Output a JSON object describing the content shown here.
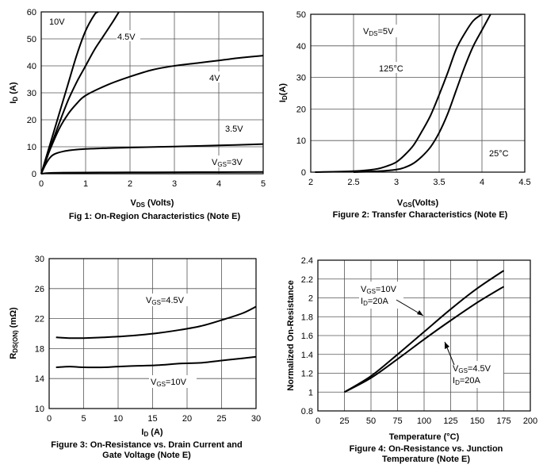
{
  "charts": [
    {
      "caption": "Fig 1: On-Region Characteristics (Note E)",
      "xlabel_main": "V",
      "xlabel_sub": "DS",
      "xlabel_tail": " (Volts)",
      "ylabel_main": "I",
      "ylabel_sub": "D",
      "ylabel_tail": " (A)",
      "annotations": [
        {
          "id": "a0",
          "text": "10V"
        },
        {
          "id": "a1",
          "text": "4.5V"
        },
        {
          "id": "a2",
          "text": "4V"
        },
        {
          "id": "a3",
          "text": "3.5V"
        },
        {
          "id": "a4",
          "main": "V",
          "sub": "GS",
          "tail": "=3V"
        }
      ]
    },
    {
      "caption": "Figure 2: Transfer Characteristics (Note E)",
      "xlabel_main": "V",
      "xlabel_sub": "GS",
      "xlabel_tail": "(Volts)",
      "ylabel_main": "I",
      "ylabel_sub": "D",
      "ylabel_tail": "(A)",
      "annotations": [
        {
          "id": "b0",
          "main": "V",
          "sub": "DS",
          "tail": "=5V"
        },
        {
          "id": "b1",
          "text": "125°C"
        },
        {
          "id": "b2",
          "text": "25°C"
        }
      ]
    },
    {
      "caption_line1": "Figure 3: On-Resistance vs. Drain Current and",
      "caption_line2": "Gate Voltage (Note E)",
      "xlabel_main": "I",
      "xlabel_sub": "D",
      "xlabel_tail": " (A)",
      "ylabel_main": "R",
      "ylabel_sub": "DS(ON)",
      "ylabel_tail": " (mΩ)",
      "annotations": [
        {
          "id": "c0",
          "main": "V",
          "sub": "GS",
          "tail": "=4.5V"
        },
        {
          "id": "c1",
          "main": "V",
          "sub": "GS",
          "tail": "=10V"
        }
      ]
    },
    {
      "caption_line1": "Figure 4: On-Resistance vs. Junction",
      "caption_line2": "Temperature (Note E)",
      "xlabel": "Temperature (°C)",
      "ylabel": "Normalized On-Resistance",
      "annotations": [
        {
          "id": "d0",
          "main": "V",
          "sub": "GS",
          "tail": "=10V"
        },
        {
          "id": "d1",
          "main": "I",
          "sub": "D",
          "tail": "=20A"
        },
        {
          "id": "d2",
          "main": "V",
          "sub": "GS",
          "tail": "=4.5V"
        },
        {
          "id": "d3",
          "main": "I",
          "sub": "D",
          "tail": "=20A"
        }
      ]
    }
  ],
  "chart_data": [
    {
      "type": "line",
      "title": "Fig 1: On-Region Characteristics (Note E)",
      "xlabel": "VDS (Volts)",
      "ylabel": "ID (A)",
      "xlim": [
        0,
        5
      ],
      "ylim": [
        0,
        60
      ],
      "xticks": [
        0,
        1,
        2,
        3,
        4,
        5
      ],
      "yticks": [
        0,
        10,
        20,
        30,
        40,
        50,
        60
      ],
      "grid": true,
      "series": [
        {
          "name": "10V",
          "x": [
            0,
            0.1,
            0.2,
            0.4,
            0.6,
            0.8,
            1.0,
            1.2,
            1.28
          ],
          "y": [
            0,
            5.5,
            11,
            22,
            33,
            44,
            53,
            59,
            60
          ]
        },
        {
          "name": "4.5V",
          "x": [
            0,
            0.1,
            0.2,
            0.4,
            0.6,
            0.8,
            1.0,
            1.2,
            1.4,
            1.6,
            1.75
          ],
          "y": [
            0,
            4.8,
            9.5,
            18.5,
            27,
            34,
            40,
            46,
            51,
            56,
            60
          ]
        },
        {
          "name": "4V",
          "x": [
            0,
            0.1,
            0.2,
            0.4,
            0.6,
            0.8,
            1.0,
            1.5,
            2.0,
            2.5,
            3.0,
            3.5,
            4.0,
            4.5,
            5.0
          ],
          "y": [
            0,
            4.5,
            9,
            16.5,
            22,
            26,
            29,
            33,
            36,
            38.5,
            40,
            41,
            42,
            43,
            43.8
          ]
        },
        {
          "name": "3.5V",
          "x": [
            0,
            0.1,
            0.2,
            0.3,
            0.5,
            0.7,
            1.0,
            1.5,
            2.0,
            3.0,
            4.0,
            5.0
          ],
          "y": [
            0,
            3.5,
            6,
            7.3,
            8.3,
            8.8,
            9.2,
            9.5,
            9.7,
            10.1,
            10.5,
            11.0
          ]
        },
        {
          "name": "VGS=3V",
          "x": [
            0,
            0.2,
            0.5,
            1,
            2,
            3,
            4,
            5
          ],
          "y": [
            0,
            0.3,
            0.4,
            0.45,
            0.5,
            0.55,
            0.6,
            0.65
          ]
        }
      ]
    },
    {
      "type": "line",
      "title": "Figure 2: Transfer Characteristics (Note E)",
      "xlabel": "VGS(Volts)",
      "ylabel": "ID(A)",
      "xlim": [
        2,
        4.5
      ],
      "ylim": [
        0,
        50
      ],
      "xticks": [
        2,
        2.5,
        3,
        3.5,
        4,
        4.5
      ],
      "yticks": [
        0,
        10,
        20,
        30,
        40,
        50
      ],
      "grid": true,
      "series": [
        {
          "name": "125°C",
          "x": [
            2.05,
            2.5,
            2.75,
            2.9,
            3.0,
            3.1,
            3.2,
            3.3,
            3.4,
            3.5,
            3.6,
            3.7,
            3.8,
            3.9,
            4.0
          ],
          "y": [
            0,
            0.3,
            0.9,
            2,
            3.2,
            5.5,
            8.5,
            13,
            18,
            24.5,
            31.5,
            39,
            44,
            48,
            50
          ]
        },
        {
          "name": "25°C",
          "x": [
            2.5,
            2.8,
            3.0,
            3.1,
            3.2,
            3.3,
            3.4,
            3.5,
            3.6,
            3.7,
            3.8,
            3.9,
            4.0,
            4.1
          ],
          "y": [
            0,
            0.3,
            0.8,
            1.5,
            2.8,
            5,
            8,
            12.5,
            18.5,
            26,
            33.5,
            40,
            45,
            50
          ]
        }
      ]
    },
    {
      "type": "line",
      "title": "Figure 3: On-Resistance vs. Drain Current and Gate Voltage (Note E)",
      "xlabel": "ID (A)",
      "ylabel": "RDS(ON) (mΩ)",
      "xlim": [
        0,
        30
      ],
      "ylim": [
        10,
        30
      ],
      "xticks": [
        0,
        5,
        10,
        15,
        20,
        25,
        30
      ],
      "yticks": [
        10,
        14,
        18,
        22,
        26,
        30
      ],
      "grid": true,
      "series": [
        {
          "name": "VGS=4.5V",
          "x": [
            1,
            3,
            5,
            8,
            10,
            13,
            16,
            19,
            22,
            25,
            28,
            30
          ],
          "y": [
            19.5,
            19.4,
            19.4,
            19.5,
            19.6,
            19.8,
            20.1,
            20.5,
            21,
            21.8,
            22.7,
            23.6
          ]
        },
        {
          "name": "VGS=10V",
          "x": [
            1,
            3,
            5,
            8,
            10,
            13,
            16,
            19,
            22,
            25,
            28,
            30
          ],
          "y": [
            15.5,
            15.6,
            15.5,
            15.5,
            15.6,
            15.7,
            15.8,
            16.0,
            16.1,
            16.4,
            16.7,
            16.9
          ]
        }
      ]
    },
    {
      "type": "line",
      "title": "Figure 4: On-Resistance vs. Junction Temperature (Note E)",
      "xlabel": "Temperature (°C)",
      "ylabel": "Normalized On-Resistance",
      "xlim": [
        0,
        200
      ],
      "ylim": [
        0.8,
        2.4
      ],
      "xticks": [
        0,
        25,
        50,
        75,
        100,
        125,
        150,
        175,
        200
      ],
      "yticks": [
        0.8,
        1,
        1.2,
        1.4,
        1.6,
        1.8,
        2,
        2.2,
        2.4
      ],
      "grid": true,
      "series": [
        {
          "name": "VGS=10V",
          "x": [
            25,
            50,
            75,
            100,
            125,
            150,
            175
          ],
          "y": [
            1.0,
            1.17,
            1.4,
            1.64,
            1.88,
            2.1,
            2.29
          ]
        },
        {
          "name": "VGS=4.5V",
          "x": [
            25,
            50,
            75,
            100,
            125,
            150,
            175
          ],
          "y": [
            1.0,
            1.15,
            1.35,
            1.56,
            1.76,
            1.95,
            2.12
          ]
        }
      ]
    }
  ]
}
